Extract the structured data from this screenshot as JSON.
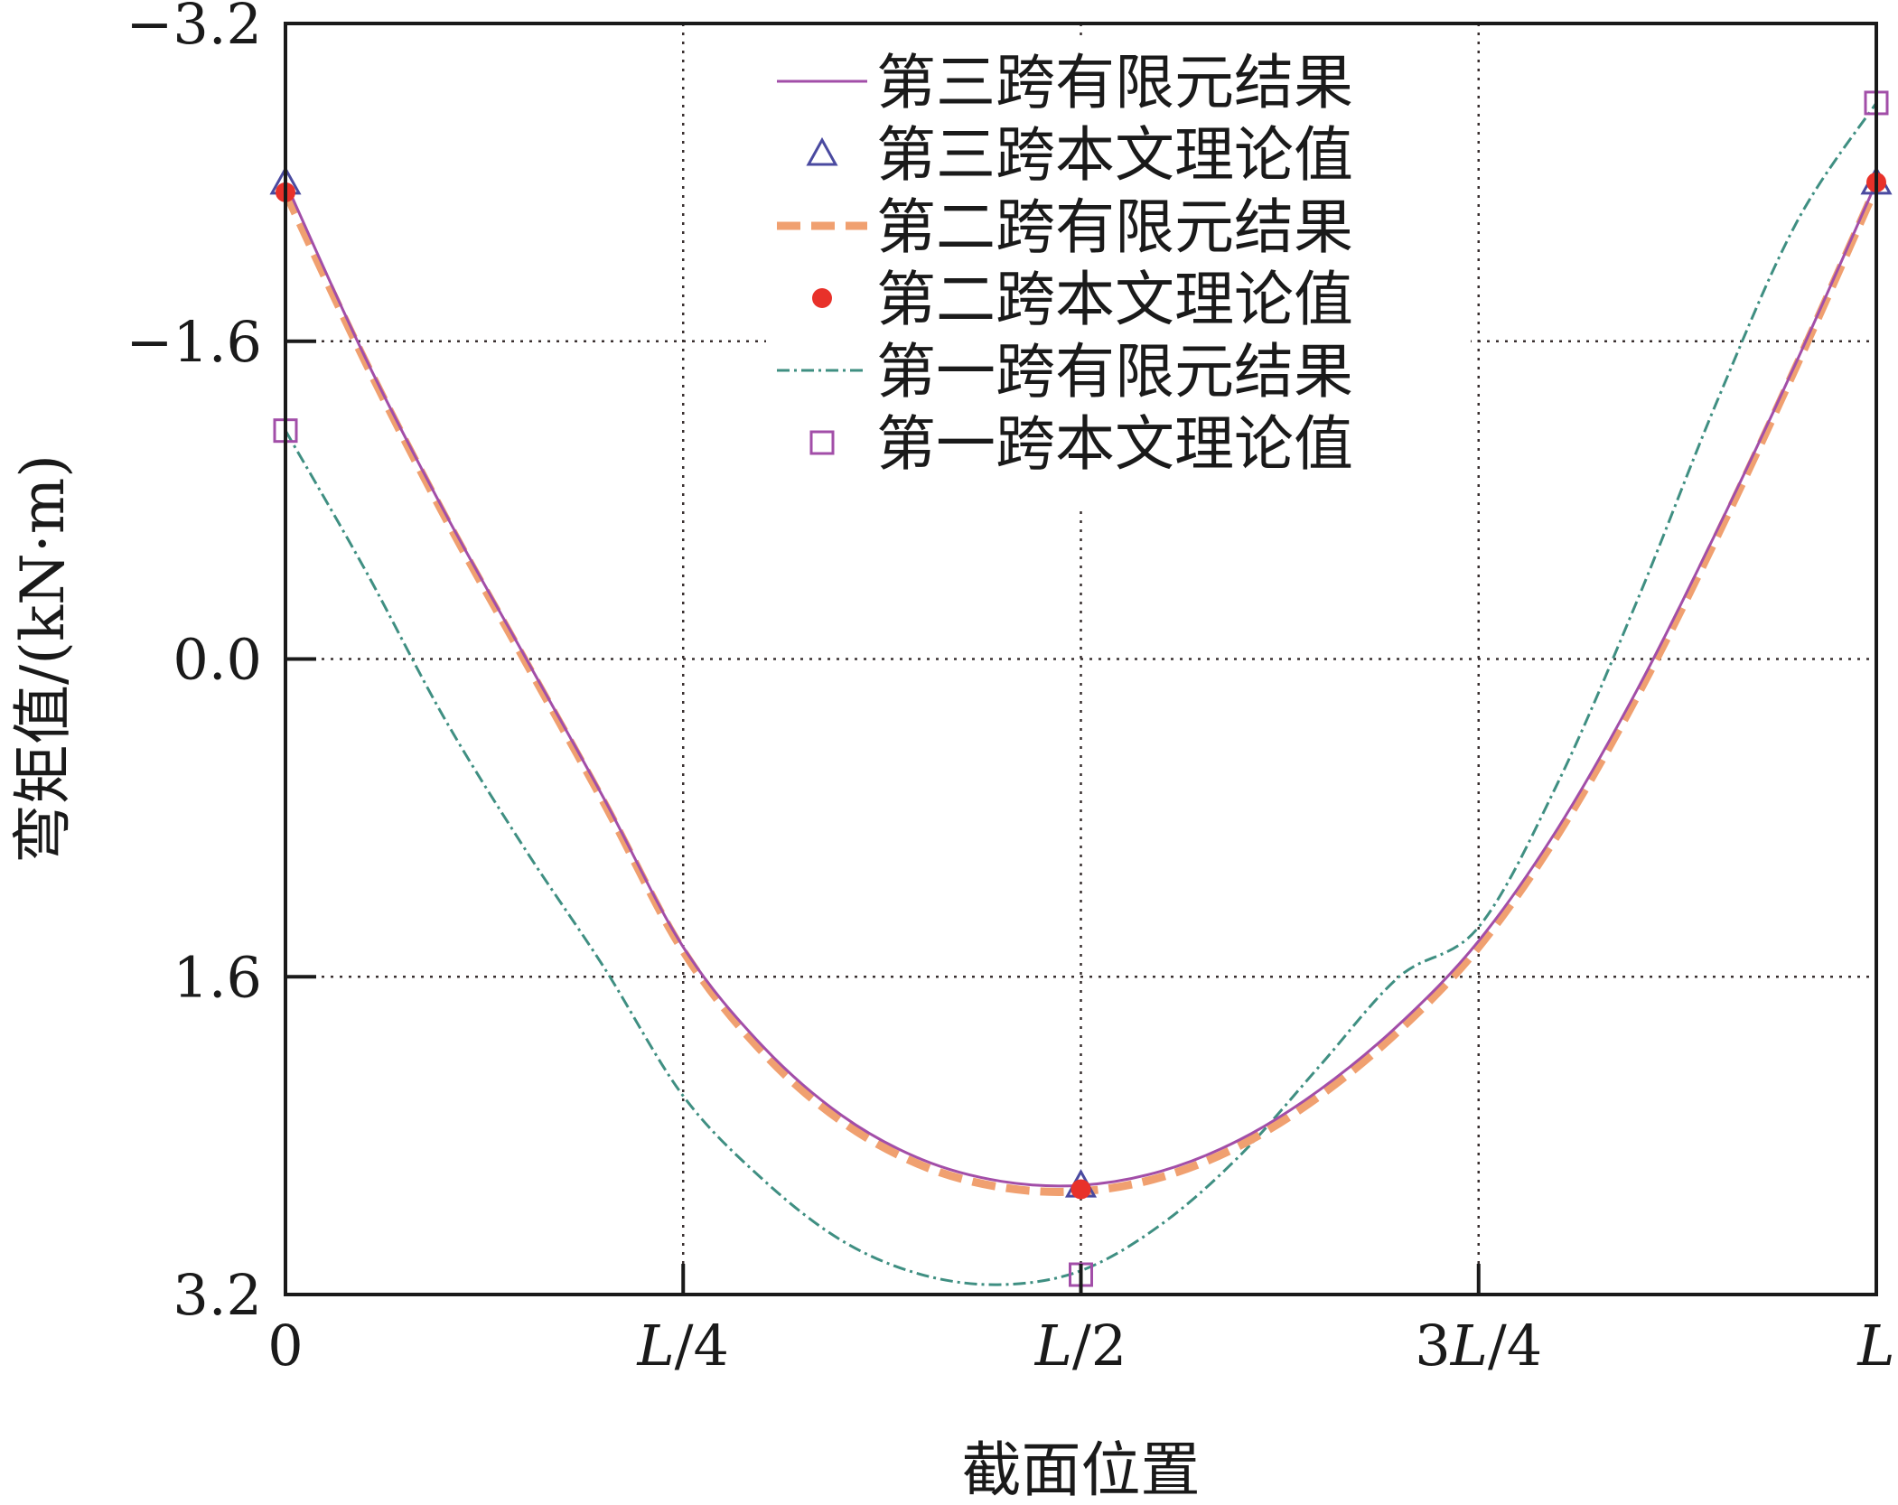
{
  "chart_data": {
    "type": "line",
    "xlabel": "截面位置",
    "ylabel": "弯矩值/(kN·m)",
    "y_axis_inverted": true,
    "ylim": [
      -3.2,
      3.2
    ],
    "xlim": [
      0,
      1
    ],
    "x_ticks": [
      {
        "value": 0,
        "label": "0"
      },
      {
        "value": 0.25,
        "label": "L/4"
      },
      {
        "value": 0.5,
        "label": "L/2"
      },
      {
        "value": 0.75,
        "label": "3L/4"
      },
      {
        "value": 1,
        "label": "L"
      }
    ],
    "y_ticks": [
      {
        "value": -3.2,
        "label": "−3.2"
      },
      {
        "value": -1.6,
        "label": "−1.6"
      },
      {
        "value": 0,
        "label": "0.0"
      },
      {
        "value": 1.6,
        "label": "1.6"
      },
      {
        "value": 3.2,
        "label": "3.2"
      }
    ],
    "grid": true,
    "legend_position": "top-center",
    "series": [
      {
        "name": "第三跨有限元结果",
        "kind": "line",
        "style": "solid",
        "color": "#a24ea8",
        "x": [
          0,
          0.05,
          0.1,
          0.15,
          0.2,
          0.25,
          0.3,
          0.35,
          0.4,
          0.45,
          0.5,
          0.55,
          0.6,
          0.65,
          0.7,
          0.75,
          0.8,
          0.85,
          0.9,
          0.95,
          1
        ],
        "y": [
          -2.4,
          -1.52,
          -0.74,
          -0.02,
          0.7,
          1.45,
          1.95,
          2.3,
          2.52,
          2.63,
          2.65,
          2.58,
          2.42,
          2.17,
          1.84,
          1.42,
          0.85,
          0.15,
          -0.65,
          -1.5,
          -2.4
        ]
      },
      {
        "name": "第三跨本文理论值",
        "kind": "marker",
        "marker": "triangle-open",
        "color": "#4a4aa0",
        "x": [
          0,
          0.5,
          1
        ],
        "y": [
          -2.4,
          2.65,
          -2.4
        ]
      },
      {
        "name": "第二跨有限元结果",
        "kind": "line",
        "style": "dashed",
        "color": "#f0a070",
        "x": [
          0,
          0.05,
          0.1,
          0.15,
          0.2,
          0.25,
          0.3,
          0.35,
          0.4,
          0.45,
          0.5,
          0.55,
          0.6,
          0.65,
          0.7,
          0.75,
          0.8,
          0.85,
          0.9,
          0.95,
          1
        ],
        "y": [
          -2.35,
          -1.5,
          -0.72,
          0.0,
          0.72,
          1.47,
          1.98,
          2.33,
          2.55,
          2.66,
          2.68,
          2.61,
          2.45,
          2.2,
          1.87,
          1.45,
          0.88,
          0.18,
          -0.62,
          -1.48,
          -2.38
        ]
      },
      {
        "name": "第二跨本文理论值",
        "kind": "marker",
        "marker": "circle-filled",
        "color": "#e8312a",
        "x": [
          0,
          0.5,
          1
        ],
        "y": [
          -2.35,
          2.67,
          -2.4
        ]
      },
      {
        "name": "第一跨有限元结果",
        "kind": "line",
        "style": "dashdot",
        "color": "#3f8f82",
        "x": [
          0,
          0.05,
          0.1,
          0.15,
          0.2,
          0.25,
          0.3,
          0.35,
          0.4,
          0.45,
          0.5,
          0.55,
          0.6,
          0.65,
          0.7,
          0.75,
          0.8,
          0.85,
          0.9,
          0.95,
          1
        ],
        "y": [
          -1.15,
          -0.45,
          0.3,
          0.95,
          1.55,
          2.2,
          2.62,
          2.93,
          3.1,
          3.15,
          3.08,
          2.85,
          2.5,
          2.05,
          1.6,
          1.35,
          0.62,
          -0.3,
          -1.3,
          -2.2,
          -2.8
        ]
      },
      {
        "name": "第一跨本文理论值",
        "kind": "marker",
        "marker": "square-open",
        "color": "#a24ea8",
        "x": [
          0,
          0.5,
          1
        ],
        "y": [
          -1.15,
          3.1,
          -2.8
        ]
      }
    ]
  }
}
